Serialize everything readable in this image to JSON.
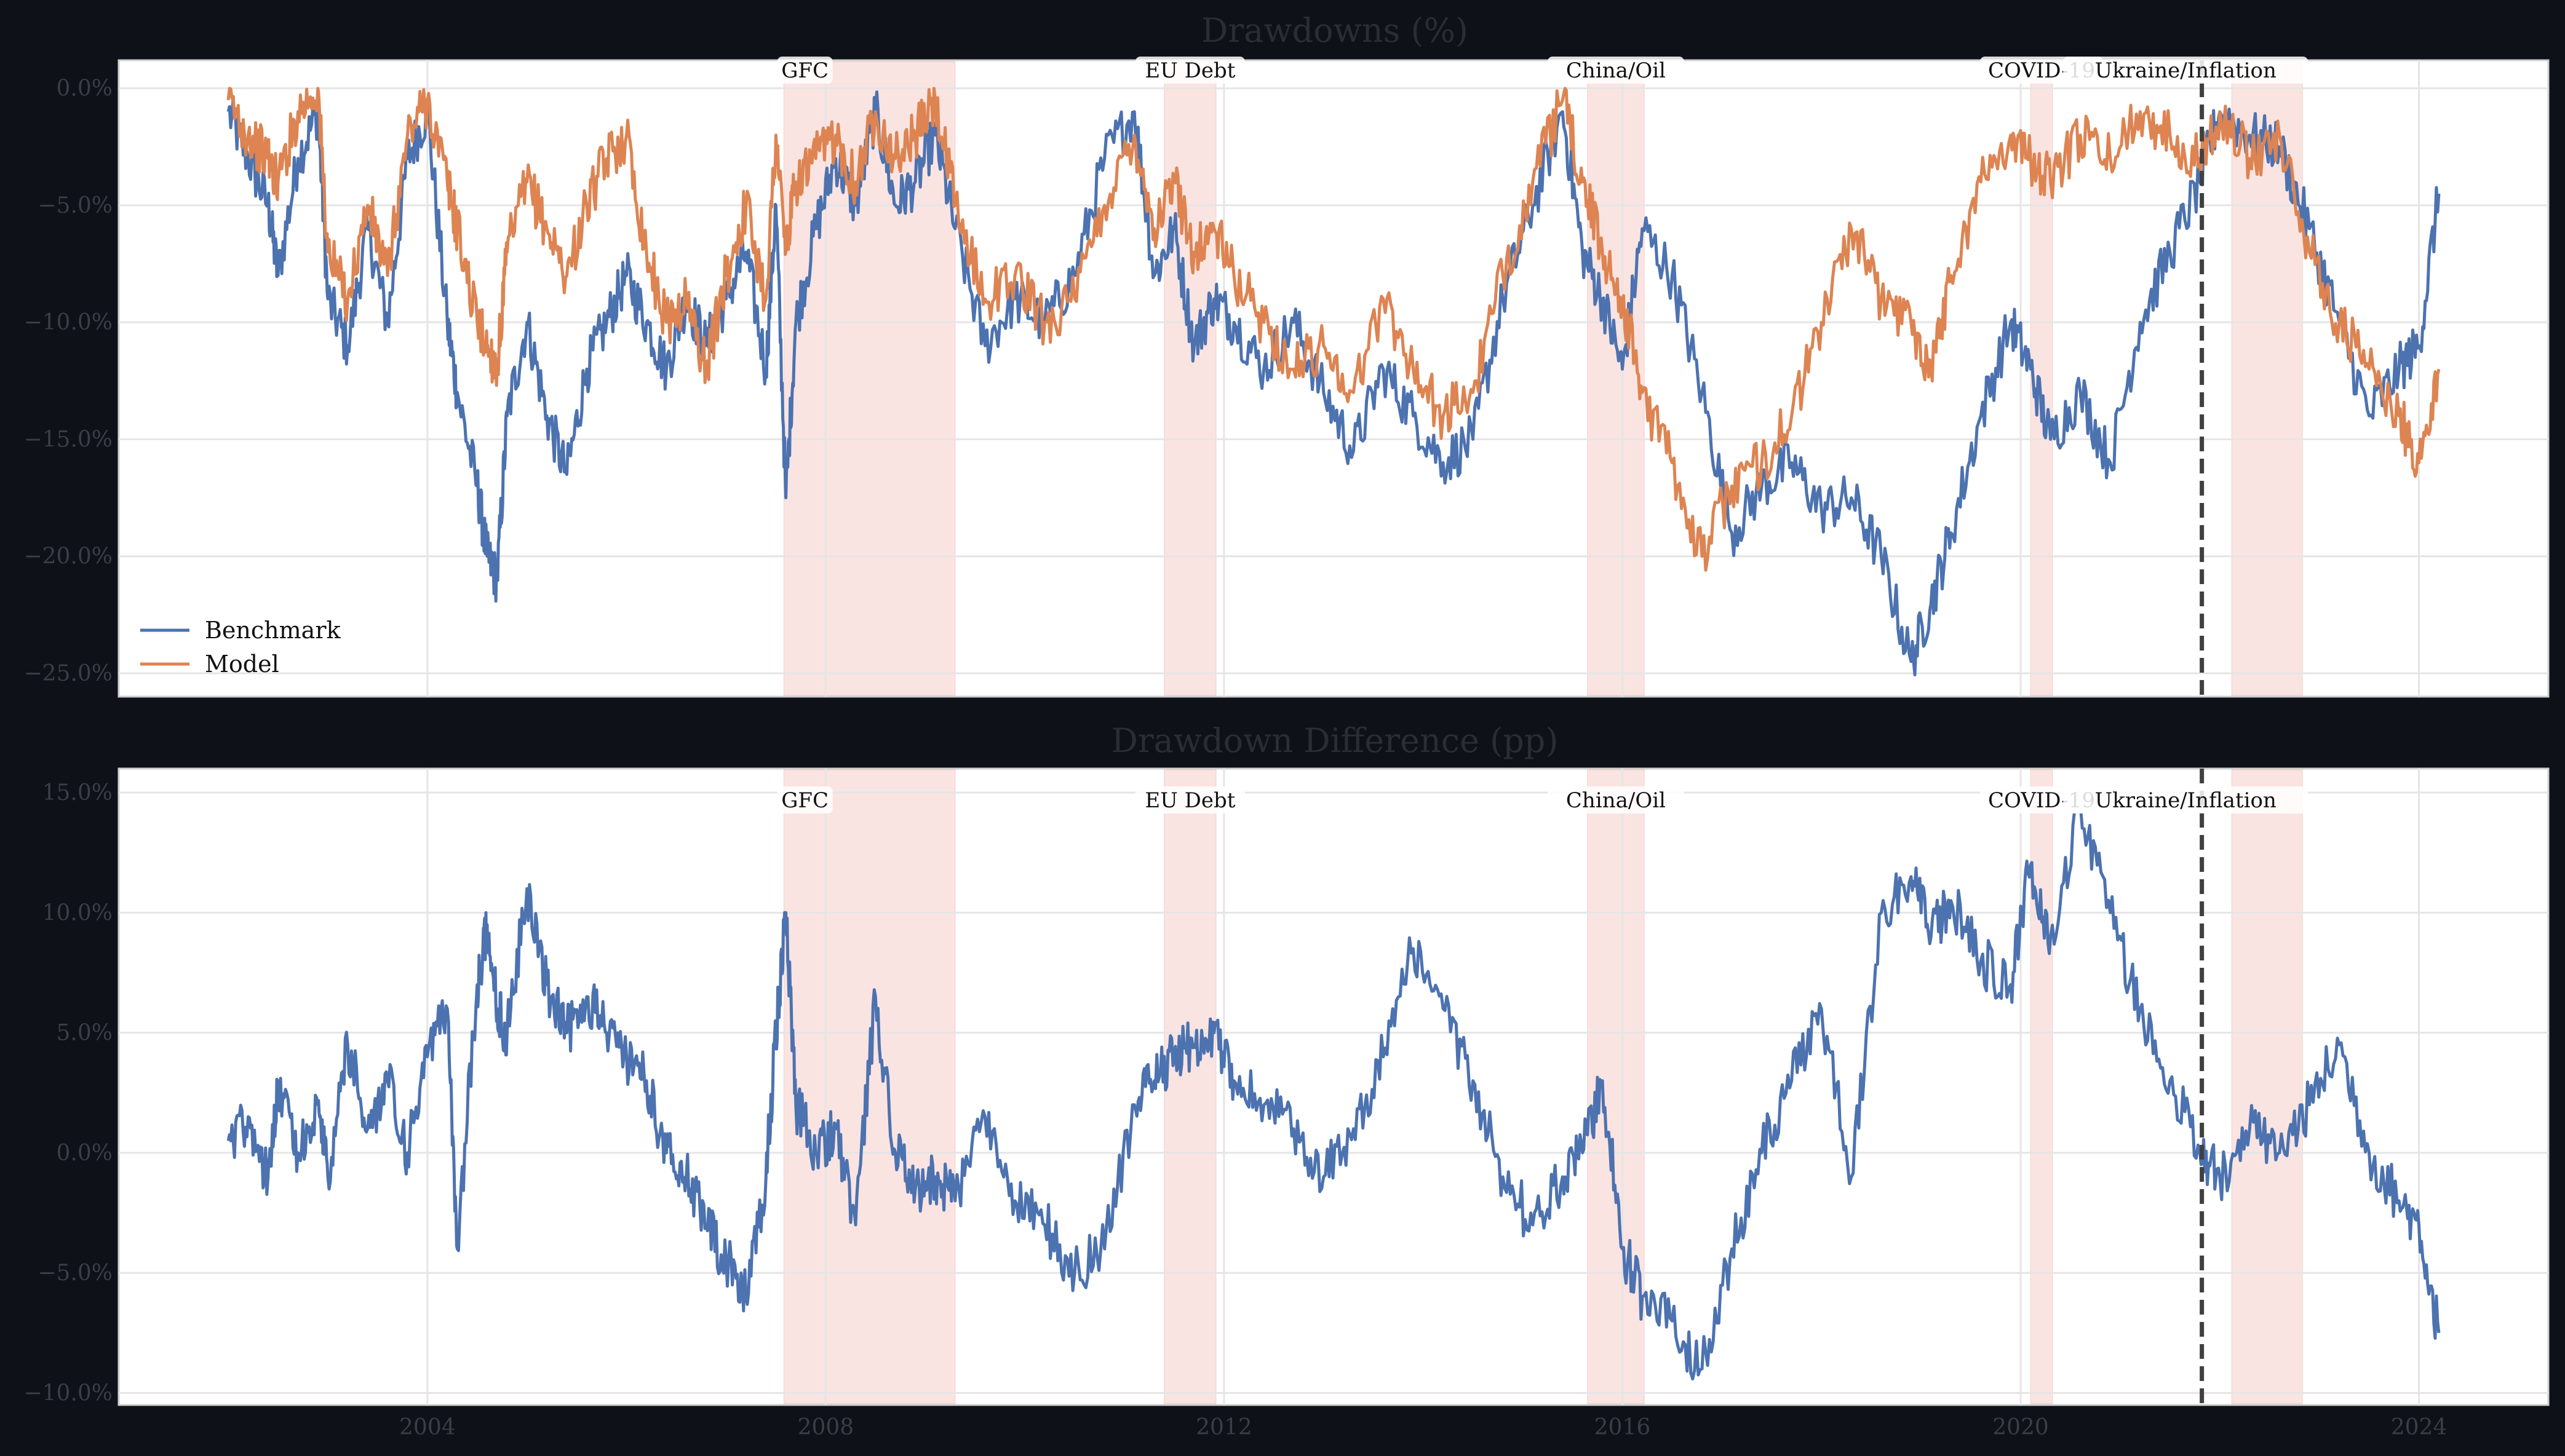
{
  "chart_data": [
    {
      "type": "line",
      "title": "Drawdowns (%)",
      "xlabel": "",
      "ylabel": "",
      "xlim": [
        2000.9,
        2025.3
      ],
      "ylim": [
        -26.0,
        1.2
      ],
      "yticks": [
        0,
        -5,
        -10,
        -15,
        -20,
        -25
      ],
      "ytick_labels": [
        "0.0%",
        "−5.0%",
        "−10.0%",
        "−15.0%",
        "−20.0%",
        "−25.0%"
      ],
      "xticks": [
        2004,
        2008,
        2012,
        2016,
        2020,
        2024
      ],
      "xtick_labels": [
        "",
        "",
        "",
        "",
        "",
        ""
      ],
      "grid": true,
      "legend": "lower-left",
      "series": [
        {
          "name": "Benchmark",
          "color": "#4c72b0",
          "x": [
            2002.0,
            2002.2,
            2002.4,
            2002.5,
            2002.7,
            2002.9,
            2003.0,
            2003.2,
            2003.4,
            2003.6,
            2003.8,
            2004.0,
            2004.2,
            2004.3,
            2004.5,
            2004.6,
            2004.7,
            2004.8,
            2005.0,
            2005.2,
            2005.4,
            2005.6,
            2005.8,
            2006.0,
            2006.2,
            2006.4,
            2006.6,
            2006.8,
            2007.0,
            2007.2,
            2007.4,
            2007.5,
            2007.6,
            2007.7,
            2007.9,
            2008.1,
            2008.3,
            2008.5,
            2008.7,
            2008.9,
            2009.1,
            2009.3,
            2009.6,
            2009.9,
            2010.2,
            2010.5,
            2010.8,
            2011.1,
            2011.3,
            2011.5,
            2011.7,
            2011.9,
            2012.1,
            2012.4,
            2012.7,
            2013.0,
            2013.3,
            2013.6,
            2013.9,
            2014.2,
            2014.5,
            2014.8,
            2015.1,
            2015.4,
            2015.6,
            2015.8,
            2016.0,
            2016.2,
            2016.5,
            2016.8,
            2017.1,
            2017.4,
            2017.7,
            2018.0,
            2018.3,
            2018.6,
            2018.9,
            2019.1,
            2019.3,
            2019.6,
            2019.9,
            2020.1,
            2020.3,
            2020.6,
            2020.9,
            2021.2,
            2021.5,
            2021.8,
            2022.0,
            2022.3,
            2022.6,
            2022.9,
            2023.2,
            2023.5,
            2023.8,
            2024.0,
            2024.2
          ],
          "values": [
            -1.0,
            -3.0,
            -5.0,
            -8.0,
            -3.0,
            -1.0,
            -9.0,
            -11.0,
            -6.0,
            -10.0,
            -3.0,
            -1.0,
            -10.0,
            -13.0,
            -17.0,
            -20.0,
            -21.0,
            -14.0,
            -10.0,
            -14.0,
            -16.5,
            -12.0,
            -10.0,
            -8.0,
            -10.0,
            -12.0,
            -9.0,
            -11.0,
            -9.0,
            -7.0,
            -12.0,
            -5.0,
            -17.5,
            -10.0,
            -6.0,
            -3.0,
            -5.0,
            -1.0,
            -5.0,
            -4.0,
            -2.0,
            -6.0,
            -11.0,
            -9.0,
            -10.0,
            -8.0,
            -3.0,
            -1.0,
            -8.0,
            -6.0,
            -11.0,
            -9.0,
            -10.0,
            -12.0,
            -10.0,
            -13.0,
            -15.5,
            -12.0,
            -14.0,
            -16.0,
            -15.0,
            -9.0,
            -5.0,
            -1.0,
            -7.0,
            -9.0,
            -12.0,
            -6.0,
            -8.0,
            -13.0,
            -19.0,
            -17.0,
            -16.0,
            -18.0,
            -17.5,
            -20.0,
            -24.5,
            -22.0,
            -19.0,
            -14.0,
            -10.0,
            -12.0,
            -15.0,
            -13.0,
            -16.0,
            -10.0,
            -7.0,
            -4.0,
            -1.0,
            -2.0,
            -2.5,
            -6.0,
            -10.0,
            -14.0,
            -12.0,
            -11.0,
            -4.5
          ]
        },
        {
          "name": "Model",
          "color": "#dd8452",
          "x": [
            2002.0,
            2002.2,
            2002.4,
            2002.5,
            2002.7,
            2002.9,
            2003.0,
            2003.2,
            2003.4,
            2003.6,
            2003.8,
            2004.0,
            2004.2,
            2004.3,
            2004.5,
            2004.6,
            2004.7,
            2004.8,
            2005.0,
            2005.2,
            2005.4,
            2005.6,
            2005.8,
            2006.0,
            2006.2,
            2006.4,
            2006.6,
            2006.8,
            2007.0,
            2007.2,
            2007.4,
            2007.5,
            2007.6,
            2007.7,
            2007.9,
            2008.1,
            2008.3,
            2008.5,
            2008.7,
            2008.9,
            2009.1,
            2009.3,
            2009.6,
            2009.9,
            2010.2,
            2010.5,
            2010.8,
            2011.1,
            2011.3,
            2011.5,
            2011.7,
            2011.9,
            2012.1,
            2012.4,
            2012.7,
            2013.0,
            2013.3,
            2013.6,
            2013.9,
            2014.2,
            2014.5,
            2014.8,
            2015.1,
            2015.4,
            2015.6,
            2015.8,
            2016.0,
            2016.2,
            2016.5,
            2016.8,
            2017.1,
            2017.4,
            2017.7,
            2018.0,
            2018.3,
            2018.6,
            2018.9,
            2019.1,
            2019.3,
            2019.6,
            2019.9,
            2020.1,
            2020.3,
            2020.6,
            2020.9,
            2021.2,
            2021.5,
            2021.8,
            2022.0,
            2022.3,
            2022.6,
            2022.9,
            2023.2,
            2023.5,
            2023.8,
            2024.0,
            2024.2
          ],
          "values": [
            -0.5,
            -2.0,
            -3.0,
            -4.0,
            -1.0,
            0.0,
            -7.0,
            -9.0,
            -5.0,
            -8.0,
            -2.0,
            -0.5,
            -4.0,
            -6.0,
            -10.0,
            -11.0,
            -12.0,
            -7.0,
            -4.0,
            -6.0,
            -8.0,
            -5.0,
            -3.0,
            -2.0,
            -7.0,
            -10.0,
            -9.0,
            -12.0,
            -8.0,
            -5.0,
            -9.0,
            -2.0,
            -7.0,
            -4.0,
            -3.0,
            -2.0,
            -4.0,
            -1.0,
            -3.0,
            -2.0,
            -0.5,
            -5.0,
            -9.0,
            -8.0,
            -10.0,
            -9.0,
            -5.0,
            -2.0,
            -6.0,
            -4.0,
            -7.0,
            -6.0,
            -8.0,
            -10.0,
            -12.0,
            -11.0,
            -13.0,
            -9.0,
            -12.0,
            -14.0,
            -13.0,
            -8.0,
            -4.0,
            -0.5,
            -4.0,
            -7.0,
            -9.0,
            -13.0,
            -16.0,
            -20.0,
            -17.0,
            -16.0,
            -14.0,
            -10.0,
            -6.0,
            -9.0,
            -10.0,
            -12.0,
            -8.0,
            -4.0,
            -2.0,
            -3.0,
            -4.0,
            -2.0,
            -3.0,
            -1.0,
            -2.0,
            -3.0,
            -1.0,
            -3.0,
            -2.0,
            -7.0,
            -10.0,
            -12.0,
            -14.0,
            -16.0,
            -12.0
          ]
        }
      ]
    },
    {
      "type": "line",
      "title": "Drawdown Difference (pp)",
      "xlabel": "",
      "ylabel": "",
      "xlim": [
        2000.9,
        2025.3
      ],
      "ylim": [
        -10.5,
        16.0
      ],
      "yticks": [
        15,
        10,
        5,
        0,
        -5,
        -10
      ],
      "ytick_labels": [
        "15.0%",
        "10.0%",
        "5.0%",
        "0.0%",
        "−5.0%",
        "−10.0%"
      ],
      "xticks": [
        2004,
        2008,
        2012,
        2016,
        2020,
        2024
      ],
      "xtick_labels": [
        "2004",
        "2008",
        "2012",
        "2016",
        "2020",
        "2024"
      ],
      "grid": true,
      "series": [
        {
          "name": "",
          "color": "#4c72b0",
          "x": [
            2002.0,
            2002.2,
            2002.4,
            2002.5,
            2002.7,
            2002.9,
            2003.0,
            2003.2,
            2003.4,
            2003.6,
            2003.8,
            2004.0,
            2004.2,
            2004.3,
            2004.5,
            2004.6,
            2004.7,
            2004.8,
            2005.0,
            2005.2,
            2005.4,
            2005.6,
            2005.8,
            2006.0,
            2006.2,
            2006.4,
            2006.6,
            2006.8,
            2007.0,
            2007.2,
            2007.4,
            2007.5,
            2007.6,
            2007.7,
            2007.9,
            2008.1,
            2008.3,
            2008.5,
            2008.7,
            2008.9,
            2009.1,
            2009.3,
            2009.6,
            2009.9,
            2010.2,
            2010.5,
            2010.8,
            2011.1,
            2011.3,
            2011.5,
            2011.7,
            2011.9,
            2012.1,
            2012.4,
            2012.7,
            2013.0,
            2013.3,
            2013.6,
            2013.9,
            2014.2,
            2014.5,
            2014.8,
            2015.1,
            2015.4,
            2015.6,
            2015.8,
            2016.0,
            2016.2,
            2016.5,
            2016.8,
            2017.1,
            2017.4,
            2017.7,
            2018.0,
            2018.3,
            2018.6,
            2018.9,
            2019.1,
            2019.3,
            2019.6,
            2019.9,
            2020.1,
            2020.3,
            2020.6,
            2020.9,
            2021.2,
            2021.5,
            2021.8,
            2022.0,
            2022.3,
            2022.6,
            2022.9,
            2023.2,
            2023.5,
            2023.8,
            2024.0,
            2024.2
          ],
          "values": [
            0.5,
            1.5,
            -1.0,
            3.0,
            0.0,
            2.0,
            -1.0,
            4.5,
            1.0,
            3.0,
            0.0,
            4.0,
            6.0,
            -4.0,
            7.0,
            9.5,
            6.0,
            5.0,
            11.0,
            7.0,
            5.0,
            6.5,
            5.0,
            4.0,
            3.0,
            0.0,
            -1.0,
            -3.0,
            -4.5,
            -6.0,
            -1.0,
            5.0,
            10.0,
            2.0,
            0.0,
            1.0,
            -3.0,
            6.5,
            0.0,
            -1.5,
            -1.0,
            -2.0,
            1.5,
            -2.0,
            -3.0,
            -5.0,
            -4.0,
            2.0,
            3.0,
            4.0,
            4.5,
            5.0,
            3.0,
            2.0,
            1.0,
            -1.0,
            1.0,
            4.0,
            8.5,
            6.0,
            3.0,
            -1.0,
            -3.0,
            -1.0,
            0.0,
            3.0,
            -4.0,
            -6.0,
            -7.0,
            -9.0,
            -4.0,
            0.0,
            3.0,
            6.0,
            -1.0,
            10.0,
            11.5,
            9.0,
            10.5,
            8.0,
            7.0,
            12.0,
            9.0,
            14.5,
            10.0,
            6.0,
            3.0,
            0.0,
            -1.0,
            1.0,
            0.0,
            2.0,
            4.5,
            0.0,
            -2.0,
            -3.0,
            -7.5
          ]
        }
      ]
    }
  ],
  "events": [
    {
      "label": "GFC",
      "start": 2007.58,
      "end": 2009.3
    },
    {
      "label": "EU Debt",
      "start": 2011.4,
      "end": 2011.92
    },
    {
      "label": "China/Oil",
      "start": 2015.65,
      "end": 2016.22
    },
    {
      "label": "COVID-19",
      "start": 2020.1,
      "end": 2020.32
    },
    {
      "label": "Ukraine/Inflation",
      "start": 2022.12,
      "end": 2022.83
    }
  ],
  "marker_x": 2021.82,
  "colors": {
    "figure_bg": "#0e1117",
    "panel_bg": "#ffffff",
    "grid": "#e5e5e5",
    "event_shade": "#f2b8b0",
    "marker": "#404040"
  }
}
